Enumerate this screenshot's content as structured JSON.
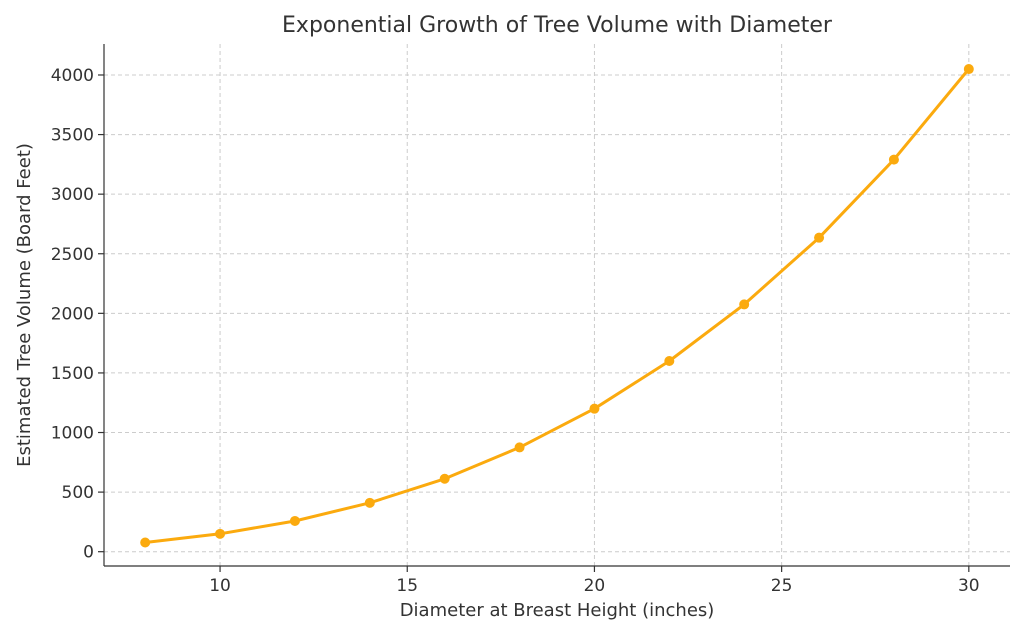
{
  "chart_data": {
    "type": "line",
    "title": "Exponential Growth of Tree Volume with Diameter",
    "xlabel": "Diameter at Breast Height (inches)",
    "ylabel": "Estimated Tree Volume (Board Feet)",
    "xlim": [
      6.9,
      31.1
    ],
    "ylim": [
      -120,
      4260
    ],
    "xticks": [
      10,
      15,
      20,
      25,
      30
    ],
    "yticks": [
      0,
      500,
      1000,
      1500,
      2000,
      2500,
      3000,
      3500,
      4000
    ],
    "grid": true,
    "series": [
      {
        "color": "#FBAA0E",
        "x": [
          8,
          10,
          12,
          14,
          16,
          18,
          20,
          22,
          24,
          26,
          28,
          30
        ],
        "y": [
          77,
          150,
          258,
          410,
          612,
          875,
          1200,
          1600,
          2075,
          2635,
          3290,
          4050
        ]
      }
    ]
  }
}
